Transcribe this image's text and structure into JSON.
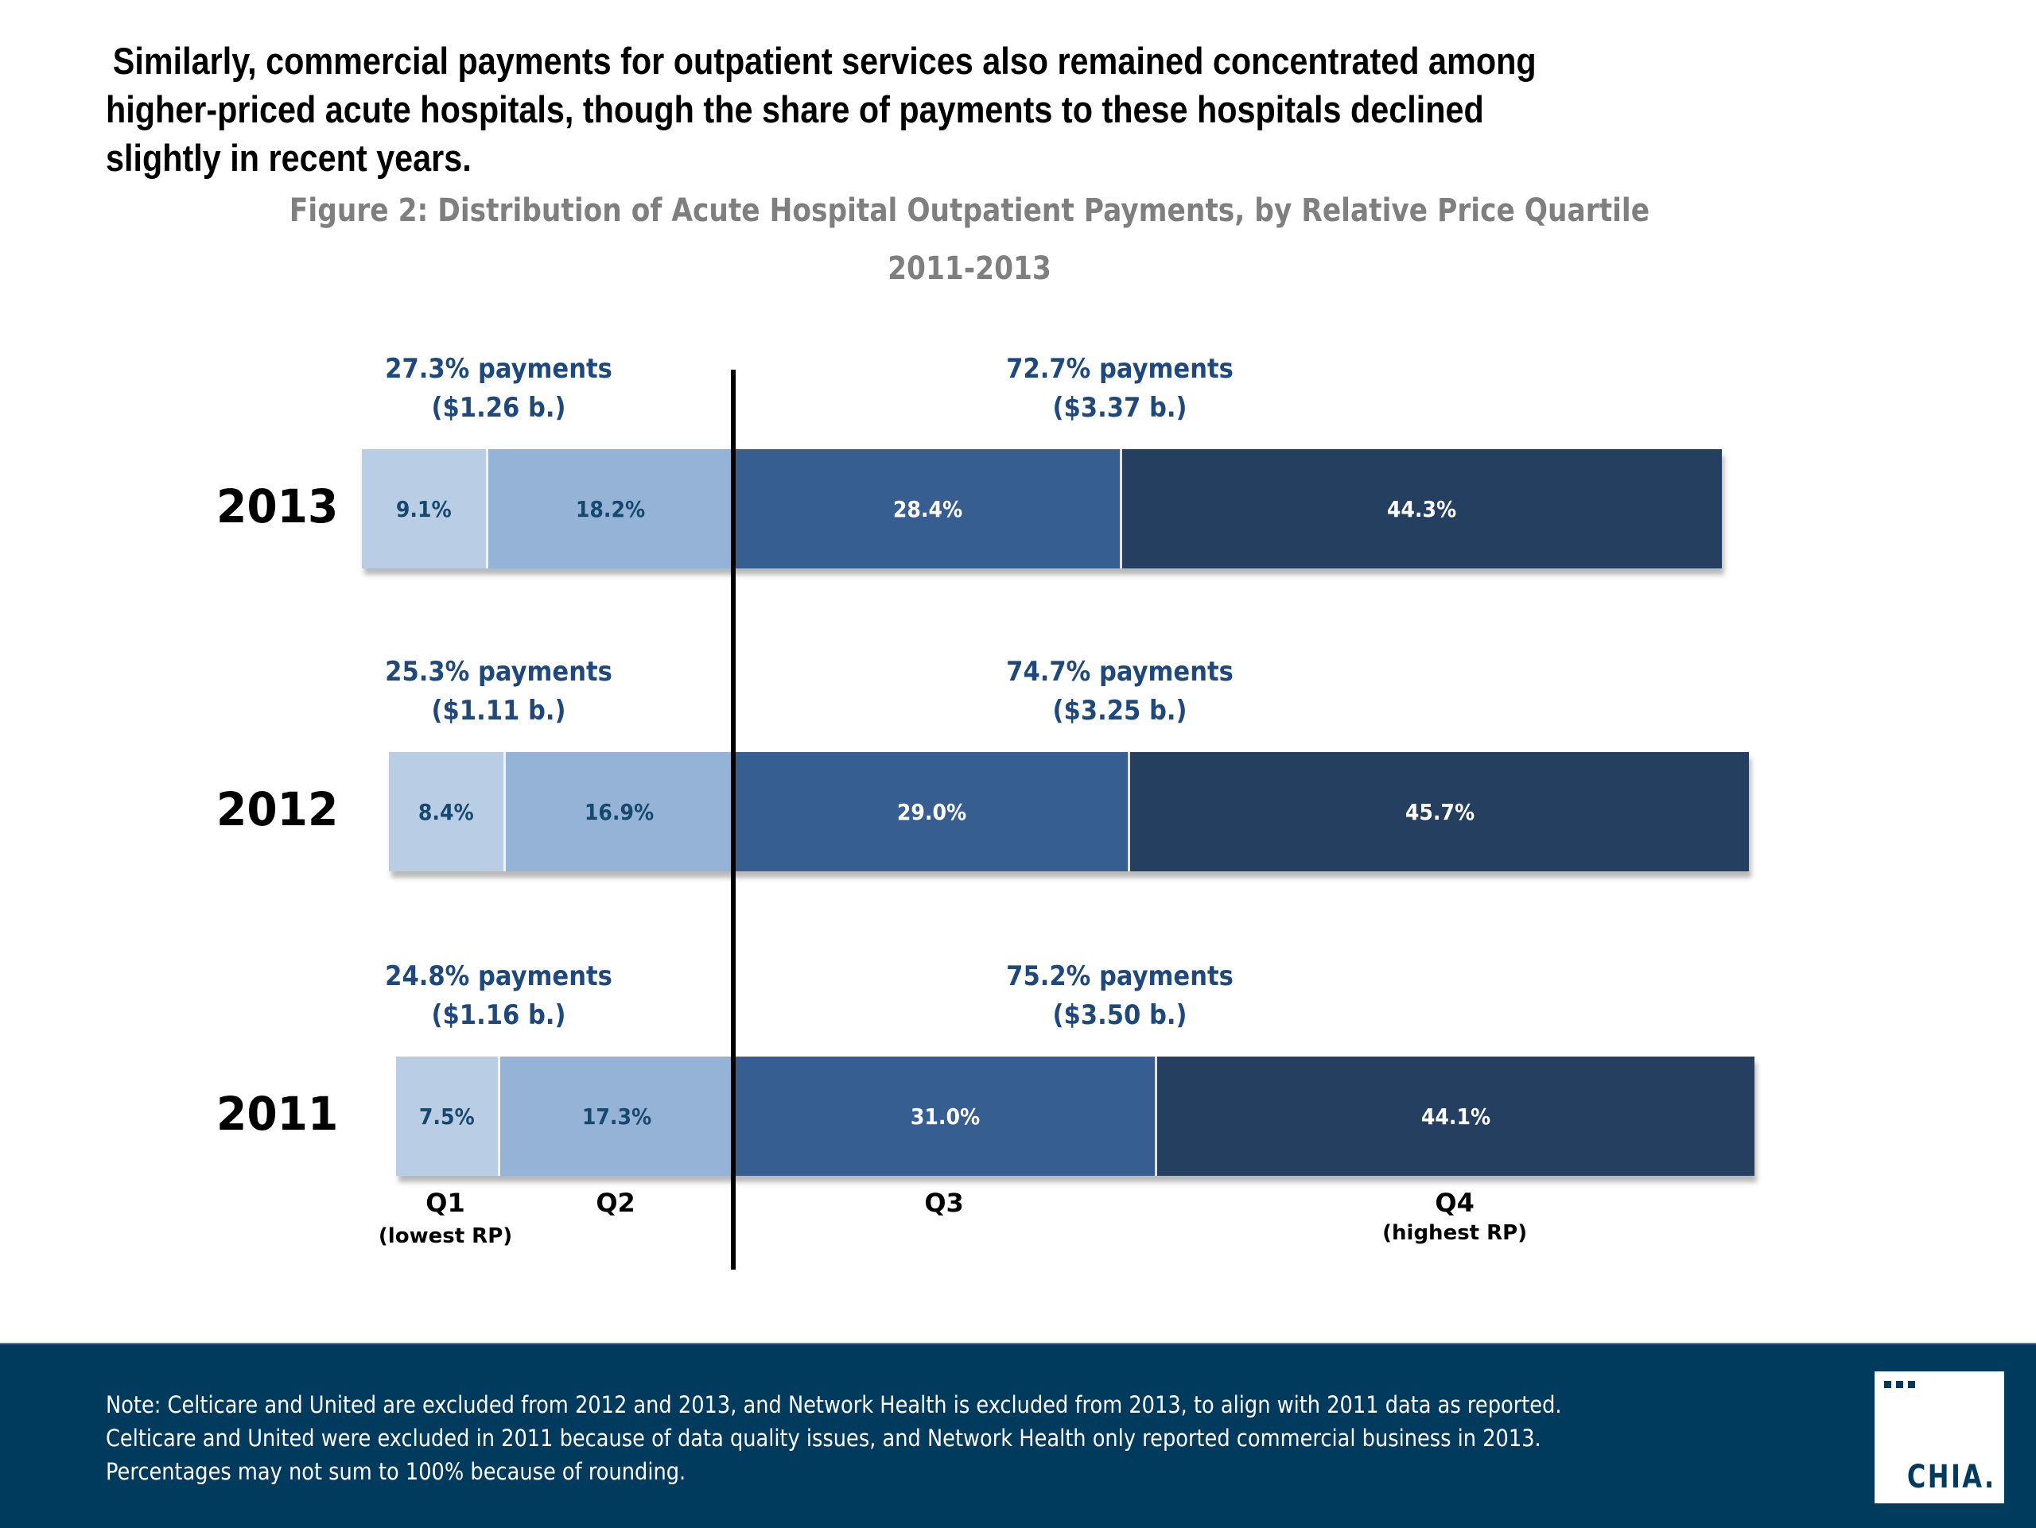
{
  "headline": {
    "lines": [
      "Similarly, commercial payments for outpatient services also remained concentrated among",
      "higher-priced acute hospitals, though the share of payments to these hospitals declined",
      "slightly in recent years."
    ]
  },
  "figure": {
    "title": "Figure 2: Distribution of Acute Hospital Outpatient Payments, by Relative Price Quartile",
    "subtitle": "2011-2013"
  },
  "chart_data": {
    "type": "bar",
    "orientation": "horizontal",
    "stacked": true,
    "title": "Figure 2: Distribution of Acute Hospital Outpatient Payments, by Relative Price Quartile",
    "subtitle": "2011-2013",
    "categories": [
      "2013",
      "2012",
      "2011"
    ],
    "series": [
      {
        "name": "Q1",
        "sublabel": "(lowest RP)",
        "color": "#b9cde5",
        "label_color": "#17496e",
        "values": [
          9.1,
          8.4,
          7.5
        ]
      },
      {
        "name": "Q2",
        "sublabel": "",
        "color": "#95b3d7",
        "label_color": "#17496e",
        "values": [
          18.2,
          16.9,
          17.3
        ]
      },
      {
        "name": "Q3",
        "sublabel": "",
        "color": "#375e91",
        "label_color": "#ffffff",
        "values": [
          28.4,
          29.0,
          31.0
        ]
      },
      {
        "name": "Q4",
        "sublabel": "(highest RP)",
        "color": "#243f60",
        "label_color": "#ffffff",
        "values": [
          44.3,
          45.7,
          44.1
        ]
      }
    ],
    "value_labels": [
      [
        "9.1%",
        "18.2%",
        "28.4%",
        "44.3%"
      ],
      [
        "8.4%",
        "16.9%",
        "29.0%",
        "45.7%"
      ],
      [
        "7.5%",
        "17.3%",
        "31.0%",
        "44.1%"
      ]
    ],
    "annotations": [
      {
        "year": "2013",
        "low": {
          "pct": "27.3% payments",
          "amount": "($1.26 b.)"
        },
        "high": {
          "pct": "72.7% payments",
          "amount": "($3.37 b.)"
        }
      },
      {
        "year": "2012",
        "low": {
          "pct": "25.3% payments",
          "amount": "($1.11 b.)"
        },
        "high": {
          "pct": "74.7% payments",
          "amount": "($3.25 b.)"
        }
      },
      {
        "year": "2011",
        "low": {
          "pct": "24.8% payments",
          "amount": "($1.16 b.)"
        },
        "high": {
          "pct": "75.2% payments",
          "amount": "($3.50 b.)"
        }
      }
    ],
    "divider": "between Q2 and Q3",
    "xlabel": "",
    "ylabel": "",
    "unit": "%",
    "grid": false,
    "legend": "none"
  },
  "footer": {
    "note_lines": [
      "Note: Celticare and United are excluded from 2012 and 2013, and Network Health is excluded from 2013, to align with 2011 data as reported.",
      "Celticare and United were excluded in 2011 because of data quality issues, and Network Health only reported commercial business in 2013.",
      "Percentages may not sum to 100% because of rounding."
    ],
    "logo_text": "CHIA.",
    "background": "#003a5d"
  }
}
